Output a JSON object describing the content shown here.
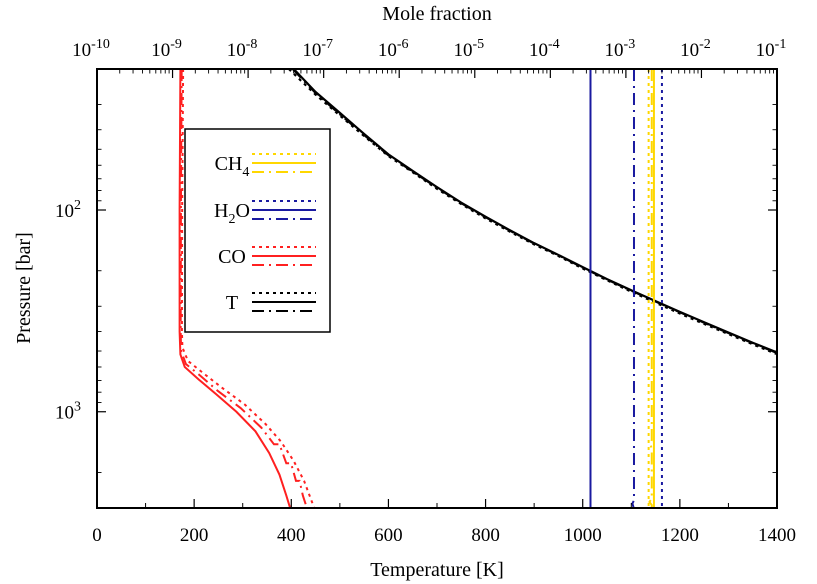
{
  "chart_data": {
    "type": "line",
    "xlabel_bottom": "Temperature [K]",
    "xlabel_top": "Mole fraction",
    "ylabel": "Pressure [bar]",
    "x_bottom": {
      "range": [
        0,
        1400
      ],
      "ticks": [
        0,
        200,
        400,
        600,
        800,
        1000,
        1200,
        1400
      ]
    },
    "x_top": {
      "scale": "log",
      "range": [
        1e-10,
        0.1
      ],
      "ticks": [
        {
          "base": "10",
          "exp": "-10"
        },
        {
          "base": "10",
          "exp": "-9"
        },
        {
          "base": "10",
          "exp": "-8"
        },
        {
          "base": "10",
          "exp": "-7"
        },
        {
          "base": "10",
          "exp": "-6"
        },
        {
          "base": "10",
          "exp": "-5"
        },
        {
          "base": "10",
          "exp": "-4"
        },
        {
          "base": "10",
          "exp": "-3"
        },
        {
          "base": "10",
          "exp": "-2"
        },
        {
          "base": "10",
          "exp": "-1"
        }
      ]
    },
    "y": {
      "scale": "log",
      "inverted": true,
      "range": [
        20,
        3000
      ],
      "ticks": [
        {
          "base": "10",
          "exp": "2",
          "value": 100
        },
        {
          "base": "10",
          "exp": "3",
          "value": 1000
        }
      ]
    },
    "legend": {
      "position": "top-left",
      "entries": [
        {
          "label_main": "CH",
          "label_sub": "4",
          "color": "#FFD700"
        },
        {
          "label_main": "H",
          "label_sub": "2",
          "label_tail": "O",
          "color": "#1a1aa0"
        },
        {
          "label_main": "CO",
          "label_sub": "",
          "color": "#FF2020"
        },
        {
          "label_main": "T",
          "label_sub": "",
          "color": "#000000"
        }
      ]
    },
    "series": [
      {
        "group": "T",
        "style": "solid",
        "axis": "temperature",
        "points": [
          [
            405,
            20
          ],
          [
            450,
            26
          ],
          [
            500,
            33
          ],
          [
            550,
            42
          ],
          [
            600,
            53
          ],
          [
            650,
            64
          ],
          [
            700,
            77
          ],
          [
            750,
            92
          ],
          [
            800,
            108
          ],
          [
            850,
            126
          ],
          [
            900,
            146
          ],
          [
            950,
            167
          ],
          [
            1000,
            192
          ],
          [
            1050,
            220
          ],
          [
            1100,
            250
          ],
          [
            1150,
            283
          ],
          [
            1200,
            320
          ],
          [
            1250,
            360
          ],
          [
            1300,
            405
          ],
          [
            1350,
            455
          ],
          [
            1400,
            508
          ]
        ]
      },
      {
        "group": "T",
        "style": "dashdot",
        "axis": "temperature",
        "points": [
          [
            403,
            20
          ],
          [
            450,
            26.3
          ],
          [
            500,
            33.5
          ],
          [
            550,
            42.5
          ],
          [
            600,
            53.5
          ],
          [
            650,
            64.5
          ],
          [
            700,
            77.5
          ],
          [
            750,
            92.5
          ],
          [
            800,
            108.5
          ],
          [
            850,
            126.5
          ],
          [
            900,
            146.5
          ],
          [
            950,
            167.5
          ],
          [
            1000,
            193
          ],
          [
            1050,
            221
          ],
          [
            1100,
            251
          ],
          [
            1150,
            284
          ],
          [
            1200,
            321
          ],
          [
            1250,
            362
          ],
          [
            1300,
            407
          ],
          [
            1350,
            457
          ],
          [
            1400,
            511
          ]
        ]
      },
      {
        "group": "T",
        "style": "dotted",
        "axis": "temperature",
        "points": [
          [
            395,
            20
          ],
          [
            450,
            26.8
          ],
          [
            500,
            34
          ],
          [
            550,
            43
          ],
          [
            600,
            54
          ],
          [
            650,
            65
          ],
          [
            700,
            78.5
          ],
          [
            750,
            93.5
          ],
          [
            800,
            110
          ],
          [
            850,
            128
          ],
          [
            900,
            148
          ],
          [
            950,
            169
          ],
          [
            1000,
            195
          ],
          [
            1050,
            223
          ],
          [
            1100,
            254
          ],
          [
            1150,
            288
          ],
          [
            1200,
            326
          ],
          [
            1250,
            367
          ],
          [
            1300,
            412
          ],
          [
            1350,
            463
          ],
          [
            1400,
            518
          ]
        ]
      },
      {
        "group": "CO",
        "style": "dotted",
        "axis": "mole_fraction",
        "points": [
          [
            1.38e-09,
            20
          ],
          [
            1.34e-09,
            100
          ],
          [
            1.33e-09,
            400
          ],
          [
            1.35e-09,
            480
          ],
          [
            1.6e-09,
            560
          ],
          [
            2.5e-09,
            640
          ],
          [
            4.5e-09,
            760
          ],
          [
            9e-09,
            920
          ],
          [
            1.7e-08,
            1150
          ],
          [
            2.7e-08,
            1400
          ],
          [
            4e-08,
            1750
          ],
          [
            5.5e-08,
            2200
          ],
          [
            6.5e-08,
            2600
          ],
          [
            7.5e-08,
            3000
          ]
        ]
      },
      {
        "group": "CO",
        "style": "dashdot",
        "axis": "mole_fraction",
        "points": [
          [
            1.32e-09,
            20
          ],
          [
            1.29e-09,
            100
          ],
          [
            1.28e-09,
            400
          ],
          [
            1.3e-09,
            500
          ],
          [
            1.5e-09,
            580
          ],
          [
            2.3e-09,
            660
          ],
          [
            4e-09,
            790
          ],
          [
            8e-09,
            960
          ],
          [
            1.5e-08,
            1200
          ],
          [
            2.2e-08,
            1450
          ],
          [
            2.6e-08,
            1450
          ],
          [
            3.2e-08,
            1800
          ],
          [
            3.7e-08,
            1800
          ],
          [
            4.3e-08,
            2200
          ],
          [
            4.8e-08,
            2200
          ],
          [
            5.3e-08,
            2600
          ],
          [
            6e-08,
            3000
          ]
        ]
      },
      {
        "group": "CO",
        "style": "solid",
        "axis": "mole_fraction",
        "points": [
          [
            1.27e-09,
            20
          ],
          [
            1.24e-09,
            100
          ],
          [
            1.24e-09,
            400
          ],
          [
            1.27e-09,
            520
          ],
          [
            1.45e-09,
            600
          ],
          [
            2.2e-09,
            690
          ],
          [
            3.8e-09,
            820
          ],
          [
            7e-09,
            1000
          ],
          [
            1.25e-08,
            1250
          ],
          [
            1.9e-08,
            1600
          ],
          [
            2.6e-08,
            2050
          ],
          [
            3.2e-08,
            2600
          ],
          [
            3.6e-08,
            3000
          ]
        ]
      },
      {
        "group": "H2O",
        "style": "solid",
        "axis": "mole_fraction",
        "points": [
          [
            0.00034,
            20
          ],
          [
            0.00034,
            3000
          ]
        ]
      },
      {
        "group": "H2O",
        "style": "dashdot",
        "axis": "mole_fraction",
        "points": [
          [
            0.00128,
            20
          ],
          [
            0.00128,
            2750
          ],
          [
            0.00122,
            2850
          ],
          [
            0.00127,
            3000
          ]
        ]
      },
      {
        "group": "H2O",
        "style": "dotted",
        "axis": "mole_fraction",
        "points": [
          [
            0.003,
            20
          ],
          [
            0.003,
            3000
          ]
        ]
      },
      {
        "group": "CH4",
        "style": "solid",
        "axis": "mole_fraction",
        "points": [
          [
            0.00235,
            20
          ],
          [
            0.00235,
            3000
          ]
        ]
      },
      {
        "group": "CH4",
        "style": "dashdot",
        "axis": "mole_fraction",
        "points": [
          [
            0.0022,
            20
          ],
          [
            0.0022,
            1380
          ],
          [
            0.0021,
            1450
          ],
          [
            0.0022,
            1520
          ],
          [
            0.0022,
            2700
          ],
          [
            0.00205,
            2800
          ],
          [
            0.0022,
            2900
          ],
          [
            0.0022,
            3000
          ]
        ]
      },
      {
        "group": "CH4",
        "style": "dotted",
        "axis": "mole_fraction",
        "points": [
          [
            0.002,
            20
          ],
          [
            0.002,
            3000
          ]
        ]
      }
    ]
  }
}
